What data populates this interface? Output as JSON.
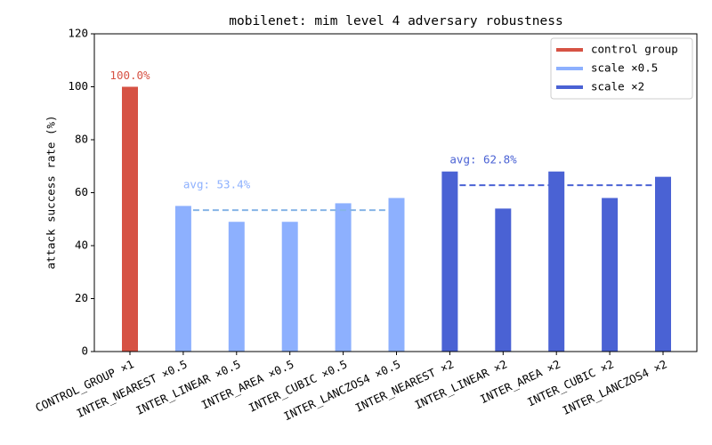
{
  "chart_data": {
    "type": "bar",
    "title": "mobilenet: mim level 4 adversary robustness",
    "y_label": "attack success rate (%)",
    "categories": [
      "CONTROL_GROUP ×1",
      "INTER_NEAREST ×0.5",
      "INTER_LINEAR ×0.5",
      "INTER_AREA ×0.5",
      "INTER_CUBIC ×0.5",
      "INTER_LANCZOS4 ×0.5",
      "INTER_NEAREST ×2",
      "INTER_LINEAR ×2",
      "INTER_AREA ×2",
      "INTER_CUBIC ×2",
      "INTER_LANCZOS4 ×2"
    ],
    "series": [
      {
        "name": "control group",
        "color": "#d65244",
        "values": [
          100,
          null,
          null,
          null,
          null,
          null,
          null,
          null,
          null,
          null,
          null
        ],
        "value_labels": [
          "100.0%",
          null,
          null,
          null,
          null,
          null,
          null,
          null,
          null,
          null,
          null
        ]
      },
      {
        "name": "scale ×0.5",
        "color": "#8db0fe",
        "values": [
          null,
          55,
          49,
          49,
          56,
          58,
          null,
          null,
          null,
          null,
          null
        ]
      },
      {
        "name": "scale ×2",
        "color": "#4a62d4",
        "values": [
          null,
          null,
          null,
          null,
          null,
          null,
          68,
          54,
          68,
          58,
          66
        ]
      }
    ],
    "annotations": [
      {
        "text": "avg: 53.4%",
        "value": 53.4,
        "color": "#8db0fe",
        "line_color": "#86b4e6",
        "from": 1,
        "to": 5
      },
      {
        "text": "avg: 62.8%",
        "value": 62.8,
        "color": "#4a62d4",
        "line_color": "#4a62d4",
        "from": 6,
        "to": 10
      }
    ],
    "ylim": [
      0,
      120
    ],
    "yticks": [
      0,
      20,
      40,
      60,
      80,
      100,
      120
    ],
    "legend": "upper right"
  }
}
